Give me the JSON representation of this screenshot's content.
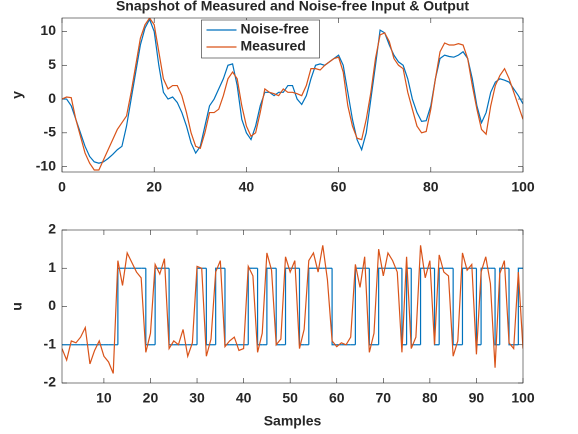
{
  "chart_data": [
    {
      "type": "line",
      "title": "Snapshot of Measured and Noise-free Input & Output",
      "ylabel": "y",
      "x": [
        0,
        1,
        2,
        3,
        4,
        5,
        6,
        7,
        8,
        9,
        10,
        11,
        12,
        13,
        14,
        15,
        16,
        17,
        18,
        19,
        20,
        21,
        22,
        23,
        24,
        25,
        26,
        27,
        28,
        29,
        30,
        31,
        32,
        33,
        34,
        35,
        36,
        37,
        38,
        39,
        40,
        41,
        42,
        43,
        44,
        45,
        46,
        47,
        48,
        49,
        50,
        51,
        52,
        53,
        54,
        55,
        56,
        57,
        58,
        59,
        60,
        61,
        62,
        63,
        64,
        65,
        66,
        67,
        68,
        69,
        70,
        71,
        72,
        73,
        74,
        75,
        76,
        77,
        78,
        79,
        80,
        81,
        82,
        83,
        84,
        85,
        86,
        87,
        88,
        89,
        90,
        91,
        92,
        93,
        94,
        95,
        96,
        97,
        98,
        99,
        100
      ],
      "series": [
        {
          "name": "Noise-free",
          "color": "#0072bd",
          "values": [
            0,
            0,
            -1,
            -3,
            -5,
            -7,
            -8.5,
            -9.3,
            -9.5,
            -9.3,
            -8.8,
            -8.2,
            -7.5,
            -7,
            -4,
            0,
            4,
            8,
            10.5,
            11.8,
            10,
            5,
            1,
            0,
            0.3,
            -0.5,
            -2,
            -4,
            -6.5,
            -8,
            -7,
            -4,
            -1,
            0,
            1.5,
            3,
            5,
            5.2,
            2,
            -3,
            -5,
            -6,
            -4,
            -1,
            1,
            1,
            0.5,
            1,
            1,
            2,
            2,
            0,
            -0.8,
            0.5,
            3,
            5,
            5.2,
            5,
            5.5,
            6,
            6.5,
            5,
            1,
            -3,
            -6,
            -7.5,
            -5,
            0,
            5,
            10.2,
            9.8,
            8,
            6.5,
            5.5,
            5,
            3,
            0,
            -2,
            -3.3,
            -3.2,
            -1,
            3,
            6,
            6.5,
            6.3,
            6.2,
            6.5,
            7,
            6,
            3,
            -1,
            -3.5,
            -2,
            1,
            2.5,
            3,
            2.8,
            2.5,
            1.5,
            0.5,
            -0.7
          ]
        },
        {
          "name": "Measured",
          "color": "#d95319",
          "values": [
            0,
            0.3,
            0.2,
            -3,
            -5.5,
            -8,
            -9.5,
            -10.5,
            -10.5,
            -9,
            -7.5,
            -6,
            -4.5,
            -3.5,
            -2.5,
            1,
            5,
            9,
            11,
            12,
            11,
            7,
            3,
            1.5,
            2,
            2,
            0.5,
            -2,
            -5,
            -7,
            -7.3,
            -5,
            -2,
            -2,
            -1.5,
            0.5,
            3,
            4,
            3,
            -1,
            -4,
            -5.5,
            -5,
            -2,
            1.5,
            1,
            0.8,
            0.5,
            1.5,
            1,
            1,
            0.8,
            0.5,
            2,
            4.5,
            4.5,
            4.3,
            5,
            5.5,
            6,
            6.2,
            4,
            -1,
            -4,
            -5.8,
            -6,
            -3,
            1,
            6,
            9.5,
            9.8,
            8.5,
            6,
            5,
            4.5,
            1,
            -1.5,
            -4,
            -5,
            -4.8,
            -1.5,
            3,
            7,
            8.3,
            8,
            8,
            8.2,
            8,
            6,
            2,
            -1.5,
            -4.5,
            -5.2,
            -1,
            2,
            3.5,
            4.5,
            3,
            1,
            -1,
            -3
          ]
        }
      ],
      "xlim": [
        0,
        100
      ],
      "xticks": [
        0,
        20,
        40,
        60,
        80,
        100
      ],
      "ylim": [
        -10.8,
        12
      ],
      "yticks": [
        -10,
        -5,
        0,
        5,
        10
      ],
      "legend": "north"
    },
    {
      "type": "line",
      "xlabel": "Samples",
      "ylabel": "u",
      "x": [
        1,
        2,
        3,
        4,
        5,
        6,
        7,
        8,
        9,
        10,
        11,
        12,
        13,
        14,
        15,
        16,
        17,
        18,
        19,
        20,
        21,
        22,
        23,
        24,
        25,
        26,
        27,
        28,
        29,
        30,
        31,
        32,
        33,
        34,
        35,
        36,
        37,
        38,
        39,
        40,
        41,
        42,
        43,
        44,
        45,
        46,
        47,
        48,
        49,
        50,
        51,
        52,
        53,
        54,
        55,
        56,
        57,
        58,
        59,
        60,
        61,
        62,
        63,
        64,
        65,
        66,
        67,
        68,
        69,
        70,
        71,
        72,
        73,
        74,
        75,
        76,
        77,
        78,
        79,
        80,
        81,
        82,
        83,
        84,
        85,
        86,
        87,
        88,
        89,
        90,
        91,
        92,
        93,
        94,
        95,
        96,
        97,
        98,
        99,
        100
      ],
      "series": [
        {
          "name": "Noise-free",
          "color": "#0072bd",
          "style": "stairs",
          "values": [
            -1,
            -1,
            -1,
            -1,
            -1,
            -1,
            -1,
            -1,
            -1,
            -1,
            -1,
            -1,
            1,
            1,
            1,
            1,
            1,
            1,
            -1,
            -1,
            1,
            1,
            1,
            -1,
            -1,
            -1,
            -1,
            -1,
            -1,
            1,
            1,
            -1,
            -1,
            1,
            1,
            -1,
            -1,
            -1,
            -1,
            -1,
            1,
            1,
            -1,
            -1,
            1,
            1,
            -1,
            -1,
            1,
            1,
            1,
            -1,
            -1,
            1,
            1,
            1,
            1,
            1,
            -1,
            -1,
            -1,
            -1,
            -1,
            1,
            1,
            1,
            -1,
            -1,
            1,
            1,
            1,
            1,
            1,
            -1,
            1,
            -1,
            -1,
            1,
            1,
            1,
            -1,
            1,
            1,
            1,
            -1,
            -1,
            1,
            1,
            1,
            -1,
            1,
            1,
            1,
            -1,
            1,
            1,
            -1,
            -1,
            1,
            1
          ]
        },
        {
          "name": "Measured",
          "color": "#d95319",
          "values": [
            -1.1,
            -1.4,
            -0.9,
            -0.95,
            -0.8,
            -0.55,
            -1.5,
            -1.15,
            -0.9,
            -1.3,
            -1.45,
            -1.75,
            1.2,
            0.55,
            1.4,
            1.15,
            0.9,
            0.75,
            -1.2,
            -0.7,
            1.1,
            0.85,
            1.25,
            -1.1,
            -0.9,
            -1.0,
            -0.6,
            -1.3,
            -0.95,
            1.05,
            1.0,
            -1.3,
            -0.85,
            0.9,
            1.2,
            -1.05,
            -0.9,
            -0.8,
            -1.15,
            -1.1,
            1.05,
            0.8,
            -1.2,
            -0.7,
            1.4,
            0.95,
            -1.0,
            -0.85,
            1.3,
            0.9,
            1.2,
            -1.1,
            -0.6,
            1.2,
            1.4,
            0.9,
            1.6,
            0.7,
            -0.9,
            -1.05,
            -0.95,
            -1.0,
            -0.8,
            1.1,
            0.5,
            1.3,
            -1.2,
            -0.7,
            1.5,
            0.8,
            1.4,
            1.2,
            0.9,
            -1.2,
            1.3,
            -1.1,
            -0.8,
            1.6,
            0.75,
            1.2,
            -1.0,
            1.35,
            0.9,
            0.8,
            -1.3,
            -0.9,
            1.4,
            0.95,
            1.1,
            -1.25,
            0.9,
            1.3,
            0.6,
            -1.6,
            0.85,
            1.2,
            -0.95,
            -1.1,
            0.9,
            -1.1
          ]
        }
      ],
      "xlim": [
        1,
        100
      ],
      "xticks": [
        10,
        20,
        30,
        40,
        50,
        60,
        70,
        80,
        90,
        100
      ],
      "ylim": [
        -2,
        2
      ],
      "yticks": [
        -2,
        -1,
        0,
        1,
        2
      ]
    }
  ]
}
